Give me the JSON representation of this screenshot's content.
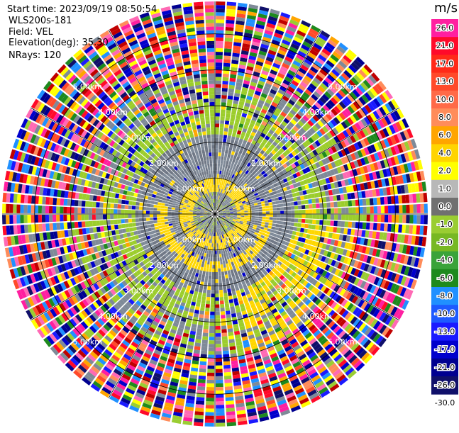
{
  "header": {
    "start_time": "Start time: 2023/09/19 08:50:54",
    "site": "WLS200s-181",
    "field": "Field: VEL",
    "elevation": "Elevation(deg): 35.30",
    "nrays": "NRays: 120"
  },
  "colorbar": {
    "unit": "m/s",
    "ticks": [
      "26.0",
      "21.0",
      "17.0",
      "13.0",
      "10.0",
      "8.0",
      "6.0",
      "4.0",
      "2.0",
      "1.0",
      "0.0",
      "-1.0",
      "-2.0",
      "-4.0",
      "-6.0",
      "-8.0",
      "-10.0",
      "-13.0",
      "-17.0",
      "-21.0",
      "-26.0",
      "-30.0"
    ],
    "colors": [
      "#ff1fa0",
      "#ff0a2a",
      "#ff2a18",
      "#ff4a2a",
      "#ff6a48",
      "#ff8c5a",
      "#ffa500",
      "#ffd400",
      "#ffff00",
      "#b8b8b8",
      "#707070",
      "#9acd32",
      "#77b823",
      "#3aa33a",
      "#1e8a1e",
      "#2090ff",
      "#1e5aff",
      "#1a1aff",
      "#0000cc",
      "#000090",
      "#10106a"
    ]
  },
  "chart_data": {
    "type": "heatmap",
    "projection": "polar (PPI)",
    "field": "VEL",
    "units": "m/s",
    "nrays": 120,
    "elevation_deg": 35.3,
    "range_rings_km": [
      1.0,
      2.0,
      3.0,
      4.0,
      5.0
    ],
    "range_labels": [
      "1.00km",
      "2.00km",
      "3.00km",
      "4.00km",
      "5.00km"
    ],
    "spokes_deg": [
      0,
      30,
      60,
      90,
      120,
      150,
      180,
      210,
      240,
      270,
      300,
      330
    ],
    "color_scale": {
      "boundaries": [
        -30.0,
        -26.0,
        -21.0,
        -17.0,
        -13.0,
        -10.0,
        -8.0,
        -6.0,
        -4.0,
        -2.0,
        -1.0,
        0.0,
        1.0,
        2.0,
        4.0,
        6.0,
        8.0,
        10.0,
        13.0,
        17.0,
        21.0,
        26.0
      ],
      "structure": "inner region mostly 0 to -2 m/s (grey/green), yellow +2 to +4 m/s arcs near center, outer region noisy across full range"
    }
  }
}
